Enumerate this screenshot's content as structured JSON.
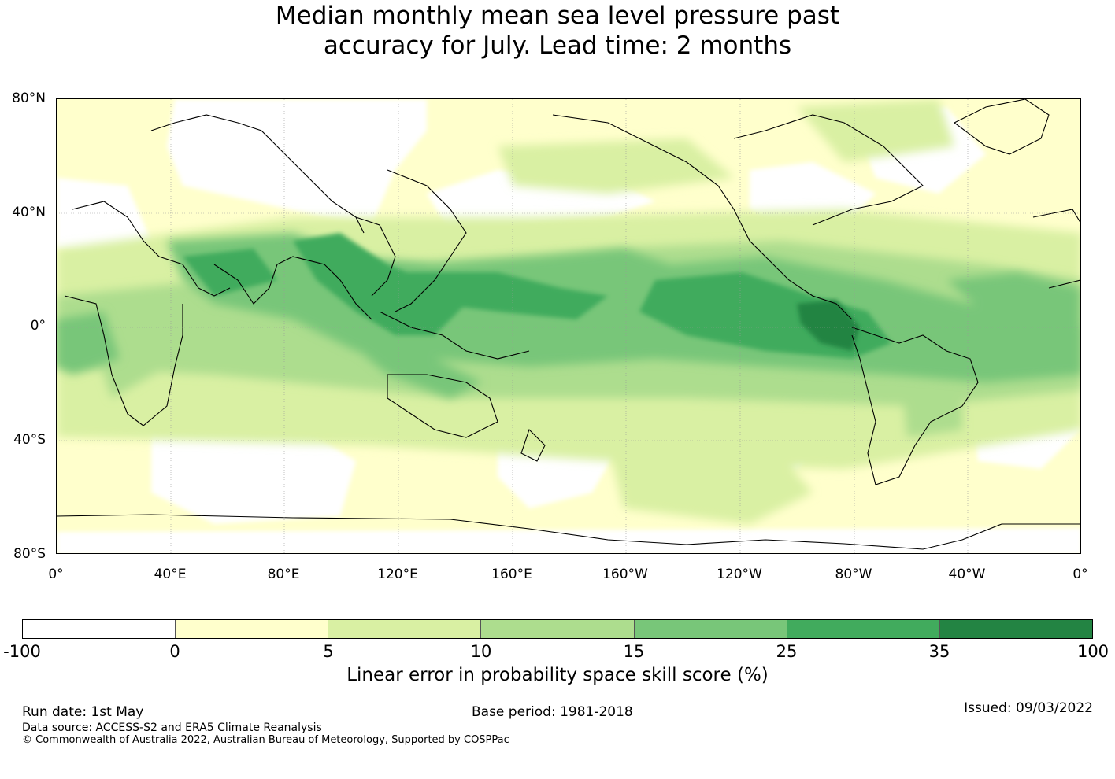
{
  "title": {
    "line1": "Median monthly mean sea level pressure past",
    "line2": "accuracy for July. Lead time: 2 months"
  },
  "map": {
    "projection": "plate-carree",
    "lat_labels": [
      "80°N",
      "40°N",
      "0°",
      "40°S",
      "80°S"
    ],
    "lon_labels": [
      "0°",
      "40°E",
      "80°E",
      "120°E",
      "160°E",
      "160°W",
      "120°W",
      "80°W",
      "40°W",
      "0°"
    ],
    "central_longitude": "180",
    "highlights": [
      {
        "region": "equatorial east Pacific off South America",
        "class": "35-100"
      },
      {
        "region": "central equatorial Pacific and Maritime Continent",
        "class": "25-35"
      },
      {
        "region": "tropical Atlantic and Indian Ocean",
        "class": "15-25"
      },
      {
        "region": "subtropics",
        "class": "5-15"
      },
      {
        "region": "mid-latitudes and polar regions",
        "class": "-100-5"
      }
    ]
  },
  "colorbar": {
    "label": "Linear error in probability space skill score (%)",
    "ticks": [
      "-100",
      "0",
      "5",
      "10",
      "15",
      "25",
      "35",
      "100"
    ],
    "colors": [
      "#ffffff",
      "#ffffcc",
      "#d9f0a3",
      "#addd8e",
      "#78c679",
      "#41ab5d",
      "#238443"
    ]
  },
  "footer": {
    "run_date": "Run date: 1st May",
    "base_period": "Base period: 1981-2018",
    "issued": "Issued: 09/03/2022",
    "data_source": "Data source: ACCESS-S2 and ERA5 Climate Reanalysis",
    "copyright": "© Commonwealth of Australia 2022, Australian Bureau of Meteorology, Supported by COSPPac"
  }
}
